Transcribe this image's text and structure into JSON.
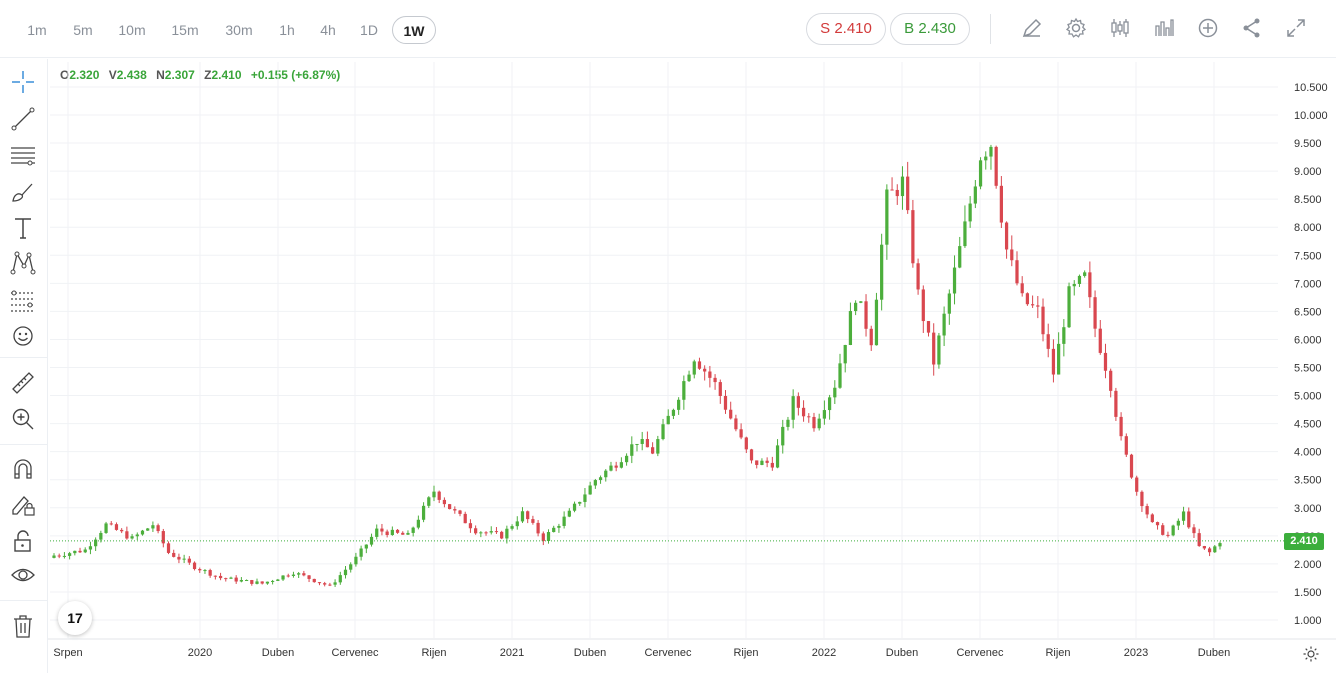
{
  "timeframes": [
    "1m",
    "5m",
    "10m",
    "15m",
    "30m",
    "1h",
    "4h",
    "1D",
    "1W"
  ],
  "active_timeframe": "1W",
  "sell": {
    "label": "S",
    "value": "2.410"
  },
  "buy": {
    "label": "B",
    "value": "2.430"
  },
  "toolbar_icons": [
    "pencil-icon",
    "gear-icon",
    "candles-icon",
    "bar-chart-icon",
    "plus-circle-icon",
    "share-icon",
    "expand-icon"
  ],
  "left_tools": [
    "crosshair-icon",
    "trend-line-icon",
    "horizontal-lines-icon",
    "brush-icon",
    "text-icon",
    "pattern-icon",
    "fib-icon",
    "emoji-icon",
    "ruler-icon",
    "zoom-icon",
    "magnet-icon",
    "lock-draw-icon",
    "lock-icon",
    "eye-icon",
    "trash-icon"
  ],
  "ohlc": {
    "o_label": "O",
    "o_value": "2.320",
    "h_label": "V",
    "h_value": "2.438",
    "l_label": "N",
    "l_value": "2.307",
    "c_label": "Z",
    "c_value": "2.410",
    "change": "+0.155 (+6.87%)"
  },
  "logo_text": "17",
  "colors": {
    "up": "#4cae3c",
    "down": "#d9474f",
    "grid": "#f0f2f5",
    "last_price": "#3cae3c"
  },
  "chart_data": {
    "type": "candlestick",
    "y_axis_labels": [
      "10.500",
      "10.000",
      "9.500",
      "9.000",
      "8.500",
      "8.000",
      "7.500",
      "7.000",
      "6.500",
      "6.000",
      "5.500",
      "5.000",
      "4.500",
      "4.000",
      "3.500",
      "3.000",
      "2.500",
      "2.000",
      "1.500",
      "1.000"
    ],
    "ylim": [
      0.7,
      10.7
    ],
    "x_axis_labels": [
      "Srpen",
      "2020",
      "Duben",
      "Cervenec",
      "Rijen",
      "2021",
      "Duben",
      "Cervenec",
      "Rijen",
      "2022",
      "Duben",
      "Cervenec",
      "Rijen",
      "2023",
      "Duben"
    ],
    "last_price": "2.410",
    "close_path": [
      [
        0,
        2.15
      ],
      [
        6,
        2.25
      ],
      [
        10,
        2.7
      ],
      [
        15,
        2.45
      ],
      [
        19,
        2.7
      ],
      [
        22,
        2.2
      ],
      [
        27,
        1.95
      ],
      [
        32,
        1.75
      ],
      [
        40,
        1.65
      ],
      [
        46,
        1.85
      ],
      [
        53,
        1.6
      ],
      [
        58,
        2.1
      ],
      [
        62,
        2.6
      ],
      [
        68,
        2.5
      ],
      [
        73,
        3.3
      ],
      [
        76,
        3.0
      ],
      [
        81,
        2.6
      ],
      [
        86,
        2.5
      ],
      [
        90,
        2.9
      ],
      [
        94,
        2.45
      ],
      [
        99,
        2.9
      ],
      [
        104,
        3.5
      ],
      [
        108,
        3.8
      ],
      [
        112,
        4.2
      ],
      [
        115,
        4.0
      ],
      [
        119,
        4.8
      ],
      [
        123,
        5.7
      ],
      [
        127,
        5.2
      ],
      [
        131,
        4.4
      ],
      [
        134,
        3.8
      ],
      [
        138,
        3.8
      ],
      [
        142,
        4.9
      ],
      [
        146,
        4.5
      ],
      [
        150,
        5.2
      ],
      [
        154,
        6.8
      ],
      [
        157,
        6.0
      ],
      [
        160,
        8.5
      ],
      [
        163,
        8.8
      ],
      [
        166,
        6.8
      ],
      [
        169,
        5.6
      ],
      [
        172,
        6.8
      ],
      [
        175,
        8.0
      ],
      [
        178,
        9.3
      ],
      [
        180,
        9.5
      ],
      [
        183,
        7.6
      ],
      [
        186,
        6.7
      ],
      [
        189,
        6.5
      ],
      [
        192,
        5.4
      ],
      [
        195,
        6.8
      ],
      [
        198,
        7.1
      ],
      [
        200,
        6.2
      ],
      [
        203,
        5.2
      ],
      [
        205,
        4.2
      ],
      [
        208,
        3.3
      ],
      [
        211,
        2.7
      ],
      [
        214,
        2.5
      ],
      [
        217,
        2.9
      ],
      [
        220,
        2.3
      ],
      [
        222,
        2.2
      ],
      [
        224,
        2.41
      ]
    ]
  }
}
